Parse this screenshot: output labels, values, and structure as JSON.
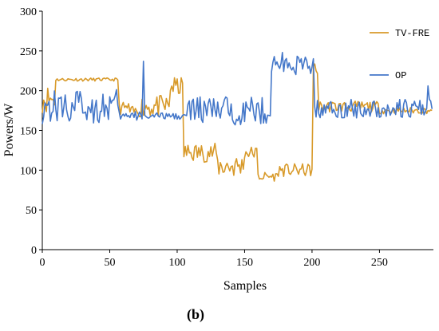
{
  "chart_data": {
    "type": "line",
    "title": "",
    "xlabel": "Samples",
    "ylabel": "Powers/W",
    "panel_label": "(b)",
    "xlim": [
      0,
      290
    ],
    "ylim": [
      0,
      300
    ],
    "x_ticks": [
      0,
      50,
      100,
      150,
      200,
      250
    ],
    "y_ticks": [
      0,
      50,
      100,
      150,
      200,
      250,
      300
    ],
    "grid": false,
    "legend_position": "right",
    "series": [
      {
        "name": "TV-FRE",
        "color": "#D89A2A",
        "segments": [
          {
            "from": 0,
            "to": 10,
            "level": 190,
            "noise": 18
          },
          {
            "from": 10,
            "to": 57,
            "level": 214,
            "noise": 2
          },
          {
            "from": 57,
            "to": 65,
            "level": 178,
            "noise": 8
          },
          {
            "from": 65,
            "to": 72,
            "level": 174,
            "noise": 6
          },
          {
            "from": 72,
            "to": 95,
            "level": 180,
            "noise": 14
          },
          {
            "from": 95,
            "to": 105,
            "level": 205,
            "noise": 12
          },
          {
            "from": 105,
            "to": 130,
            "level": 122,
            "noise": 12
          },
          {
            "from": 130,
            "to": 150,
            "level": 105,
            "noise": 15
          },
          {
            "from": 150,
            "to": 160,
            "level": 122,
            "noise": 8
          },
          {
            "from": 160,
            "to": 175,
            "level": 92,
            "noise": 6
          },
          {
            "from": 175,
            "to": 201,
            "level": 100,
            "noise": 8
          },
          {
            "from": 201,
            "to": 205,
            "level": 225,
            "noise": 12
          },
          {
            "from": 205,
            "to": 250,
            "level": 180,
            "noise": 7
          },
          {
            "from": 250,
            "to": 289,
            "level": 175,
            "noise": 4
          }
        ]
      },
      {
        "name": "OP",
        "color": "#4477C9",
        "segments": [
          {
            "from": 0,
            "to": 57,
            "level": 180,
            "noise": 22
          },
          {
            "from": 57,
            "to": 75,
            "level": 168,
            "noise": 6
          },
          {
            "from": 75,
            "to": 108,
            "level": 168,
            "noise": 4
          },
          {
            "from": 108,
            "to": 170,
            "level": 175,
            "noise": 18
          },
          {
            "from": 170,
            "to": 202,
            "level": 232,
            "noise": 12
          },
          {
            "from": 202,
            "to": 289,
            "level": 177,
            "noise": 12
          }
        ],
        "spikes": [
          {
            "x": 75,
            "y": 237
          },
          {
            "x": 178,
            "y": 248
          },
          {
            "x": 286,
            "y": 206
          }
        ]
      }
    ]
  }
}
